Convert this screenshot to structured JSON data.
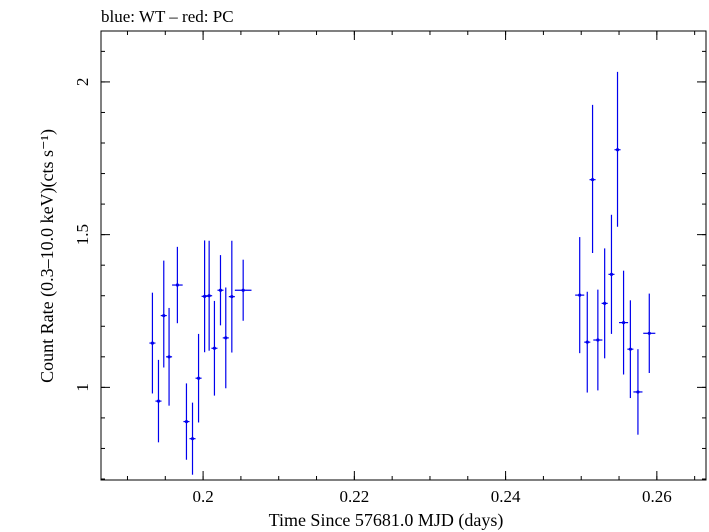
{
  "chart_data": {
    "type": "scatter",
    "title": "blue: WT – red: PC",
    "xlabel": "Time Since 57681.0 MJD (days)",
    "ylabel": "Count Rate (0.3–10.0 keV)(cts s⁻¹)",
    "xlim": [
      0.1865,
      0.2665
    ],
    "ylim": [
      0.6967,
      2.1667
    ],
    "x_ticks": [
      0.2,
      0.22,
      0.24,
      0.26
    ],
    "x_tick_labels": [
      "0.2",
      "0.22",
      "0.24",
      "0.26"
    ],
    "y_ticks": [
      1,
      1.5,
      2
    ],
    "y_tick_labels": [
      "1",
      "1.5",
      "2"
    ],
    "grid": false,
    "series": [
      {
        "color": "#0000ee",
        "marker": "error-bar-cross",
        "points": [
          {
            "x": 0.1933,
            "y": 1.145,
            "xerr": 0.0004,
            "yerr_low": 0.165,
            "yerr_high": 0.165
          },
          {
            "x": 0.1941,
            "y": 0.955,
            "xerr": 0.0004,
            "yerr_low": 0.135,
            "yerr_high": 0.135
          },
          {
            "x": 0.1948,
            "y": 1.235,
            "xerr": 0.0004,
            "yerr_low": 0.17,
            "yerr_high": 0.18
          },
          {
            "x": 0.1955,
            "y": 1.1,
            "xerr": 0.0004,
            "yerr_low": 0.16,
            "yerr_high": 0.16
          },
          {
            "x": 0.1966,
            "y": 1.335,
            "xerr": 0.0007,
            "yerr_low": 0.125,
            "yerr_high": 0.125
          },
          {
            "x": 0.1978,
            "y": 0.888,
            "xerr": 0.0004,
            "yerr_low": 0.125,
            "yerr_high": 0.125
          },
          {
            "x": 0.1986,
            "y": 0.832,
            "xerr": 0.0004,
            "yerr_low": 0.118,
            "yerr_high": 0.118
          },
          {
            "x": 0.1994,
            "y": 1.03,
            "xerr": 0.0004,
            "yerr_low": 0.145,
            "yerr_high": 0.145
          },
          {
            "x": 0.2002,
            "y": 1.298,
            "xerr": 0.0004,
            "yerr_low": 0.183,
            "yerr_high": 0.183
          },
          {
            "x": 0.2008,
            "y": 1.3,
            "xerr": 0.0004,
            "yerr_low": 0.18,
            "yerr_high": 0.18
          },
          {
            "x": 0.2015,
            "y": 1.128,
            "xerr": 0.0004,
            "yerr_low": 0.155,
            "yerr_high": 0.155
          },
          {
            "x": 0.2023,
            "y": 1.318,
            "xerr": 0.0004,
            "yerr_low": 0.115,
            "yerr_high": 0.115
          },
          {
            "x": 0.203,
            "y": 1.162,
            "xerr": 0.0004,
            "yerr_low": 0.165,
            "yerr_high": 0.165
          },
          {
            "x": 0.2038,
            "y": 1.297,
            "xerr": 0.0004,
            "yerr_low": 0.183,
            "yerr_high": 0.183
          },
          {
            "x": 0.2053,
            "y": 1.318,
            "xerr": 0.0011,
            "yerr_low": 0.1,
            "yerr_high": 0.1
          },
          {
            "x": 0.2498,
            "y": 1.302,
            "xerr": 0.0006,
            "yerr_low": 0.19,
            "yerr_high": 0.19
          },
          {
            "x": 0.2508,
            "y": 1.148,
            "xerr": 0.0004,
            "yerr_low": 0.165,
            "yerr_high": 0.165
          },
          {
            "x": 0.2515,
            "y": 1.68,
            "xerr": 0.0004,
            "yerr_low": 0.24,
            "yerr_high": 0.245
          },
          {
            "x": 0.2522,
            "y": 1.155,
            "xerr": 0.0006,
            "yerr_low": 0.165,
            "yerr_high": 0.165
          },
          {
            "x": 0.2531,
            "y": 1.275,
            "xerr": 0.0004,
            "yerr_low": 0.18,
            "yerr_high": 0.18
          },
          {
            "x": 0.254,
            "y": 1.37,
            "xerr": 0.0004,
            "yerr_low": 0.195,
            "yerr_high": 0.195
          },
          {
            "x": 0.2548,
            "y": 1.778,
            "xerr": 0.0004,
            "yerr_low": 0.252,
            "yerr_high": 0.255
          },
          {
            "x": 0.2556,
            "y": 1.212,
            "xerr": 0.0006,
            "yerr_low": 0.17,
            "yerr_high": 0.17
          },
          {
            "x": 0.2565,
            "y": 1.125,
            "xerr": 0.0004,
            "yerr_low": 0.16,
            "yerr_high": 0.16
          },
          {
            "x": 0.2575,
            "y": 0.985,
            "xerr": 0.0006,
            "yerr_low": 0.14,
            "yerr_high": 0.14
          },
          {
            "x": 0.259,
            "y": 1.177,
            "xerr": 0.0008,
            "yerr_low": 0.13,
            "yerr_high": 0.13
          }
        ]
      }
    ]
  }
}
